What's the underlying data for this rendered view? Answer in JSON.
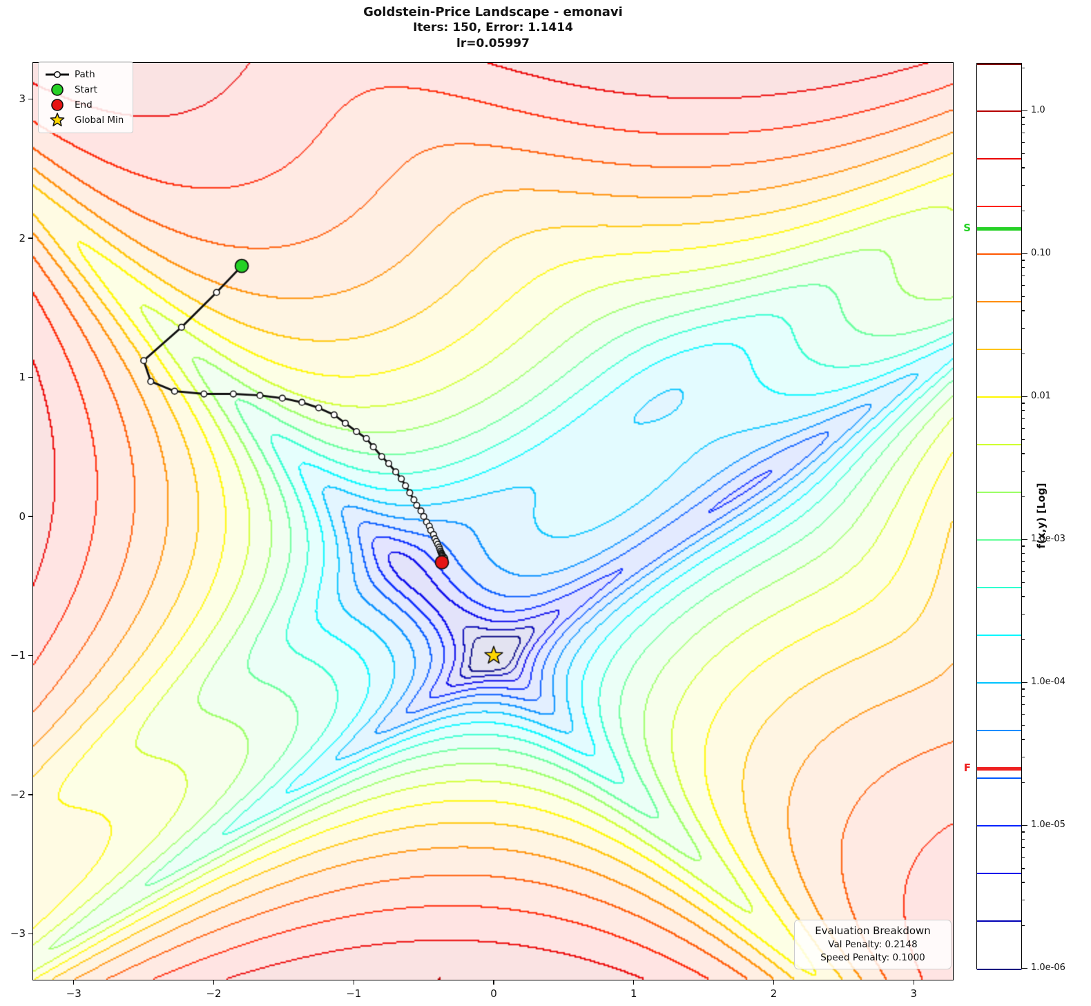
{
  "figure": {
    "title_line1": "Goldstein-Price Landscape - emonavi",
    "title_line2": "Iters: 150, Error: 1.1414",
    "title_line3": "lr=0.05997"
  },
  "legend": {
    "path_label": "Path",
    "start_label": "Start",
    "end_label": "End",
    "global_min_label": "Global Min"
  },
  "eval_box": {
    "title": "Evaluation Breakdown",
    "line1": "Val Penalty: 0.2148",
    "line2": "Speed Penalty: 0.1000"
  },
  "colorbar": {
    "axis_label": "f(x,y) [Log]",
    "log_min": -6,
    "log_max": 0.3333,
    "levels_per_decade": 3,
    "major_ticks": [
      {
        "value": 1.0,
        "label": "1.0"
      },
      {
        "value": 0.1,
        "label": "0.10"
      },
      {
        "value": 0.01,
        "label": "0.01"
      },
      {
        "value": 0.001,
        "label": "1.0e-03"
      },
      {
        "value": 0.0001,
        "label": "1.0e-04"
      },
      {
        "value": 1e-05,
        "label": "1.0e-05"
      },
      {
        "value": 1e-06,
        "label": "1.0e-06"
      }
    ],
    "start_marker": {
      "label": "S",
      "value": 0.15,
      "color": "#26d126"
    },
    "end_marker": {
      "label": "F",
      "value": 2.5e-05,
      "color": "#ee2020"
    }
  },
  "axes": {
    "x_ticks": [
      {
        "value": -3,
        "label": "−3"
      },
      {
        "value": -2,
        "label": "−2"
      },
      {
        "value": -1,
        "label": "−1"
      },
      {
        "value": 0,
        "label": "0"
      },
      {
        "value": 1,
        "label": "1"
      },
      {
        "value": 2,
        "label": "2"
      },
      {
        "value": 3,
        "label": "3"
      }
    ],
    "y_ticks": [
      {
        "value": 3,
        "label": "3"
      },
      {
        "value": 2,
        "label": "2"
      },
      {
        "value": 1,
        "label": "1"
      },
      {
        "value": 0,
        "label": "0"
      },
      {
        "value": -1,
        "label": "−1"
      },
      {
        "value": -2,
        "label": "−2"
      },
      {
        "value": -3,
        "label": "−3"
      }
    ]
  },
  "chart_data": {
    "type": "contour",
    "title": "Goldstein-Price Landscape - emonavi",
    "function": "Goldstein-Price, plotted as log10((f-3)/(fmax-3))",
    "colormap": "jet",
    "fill_alpha": 0.11,
    "xlim": [
      -3.29,
      3.28
    ],
    "ylim": [
      -3.33,
      3.26
    ],
    "levels_log10_min": -6,
    "levels_log10_max": 0.3333,
    "levels_step_decades": 0.3333,
    "n_levels": 20,
    "global_min": [
      0,
      -1
    ],
    "start_point": [
      -1.8,
      1.8
    ],
    "end_point": [
      -0.37,
      -0.33
    ],
    "colors": {
      "path": "#111111",
      "start": "#26d126",
      "end": "#e61414",
      "star": "#ffd700"
    },
    "path": [
      [
        -1.8,
        1.8
      ],
      [
        -1.98,
        1.61
      ],
      [
        -2.23,
        1.36
      ],
      [
        -2.5,
        1.12
      ],
      [
        -2.45,
        0.97
      ],
      [
        -2.28,
        0.9
      ],
      [
        -2.07,
        0.88
      ],
      [
        -1.86,
        0.88
      ],
      [
        -1.67,
        0.87
      ],
      [
        -1.51,
        0.85
      ],
      [
        -1.37,
        0.82
      ],
      [
        -1.25,
        0.78
      ],
      [
        -1.14,
        0.73
      ],
      [
        -1.06,
        0.67
      ],
      [
        -0.98,
        0.61
      ],
      [
        -0.91,
        0.56
      ],
      [
        -0.86,
        0.5
      ],
      [
        -0.8,
        0.43
      ],
      [
        -0.75,
        0.38
      ],
      [
        -0.7,
        0.32
      ],
      [
        -0.66,
        0.27
      ],
      [
        -0.63,
        0.22
      ],
      [
        -0.6,
        0.17
      ],
      [
        -0.57,
        0.12
      ],
      [
        -0.55,
        0.08
      ],
      [
        -0.52,
        0.04
      ],
      [
        -0.5,
        0.0
      ],
      [
        -0.48,
        -0.04
      ],
      [
        -0.46,
        -0.07
      ],
      [
        -0.45,
        -0.1
      ],
      [
        -0.43,
        -0.13
      ],
      [
        -0.42,
        -0.16
      ],
      [
        -0.41,
        -0.18
      ],
      [
        -0.4,
        -0.2
      ],
      [
        -0.39,
        -0.22
      ],
      [
        -0.385,
        -0.235
      ],
      [
        -0.38,
        -0.25
      ],
      [
        -0.376,
        -0.26
      ],
      [
        -0.372,
        -0.268
      ],
      [
        -0.369,
        -0.275
      ],
      [
        -0.366,
        -0.281
      ],
      [
        -0.361,
        -0.287
      ],
      [
        -0.355,
        -0.293
      ],
      [
        -0.35,
        -0.3
      ],
      [
        -0.355,
        -0.312
      ],
      [
        -0.362,
        -0.322
      ],
      [
        -0.37,
        -0.33
      ]
    ]
  }
}
